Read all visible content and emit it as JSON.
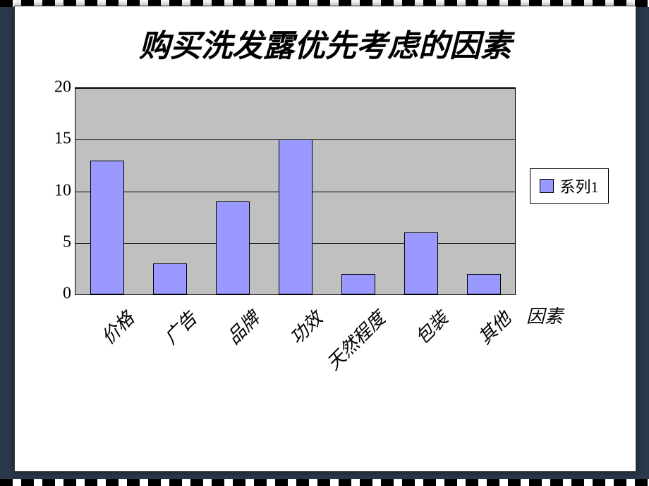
{
  "title": "购买洗发露优先考虑的因素",
  "chart": {
    "type": "bar",
    "categories": [
      "价格",
      "广告",
      "品牌",
      "功效",
      "天然程度",
      "包装",
      "其他"
    ],
    "values": [
      13,
      3,
      9,
      15,
      2,
      6,
      2
    ],
    "bar_color": "#9999ff",
    "bar_border": "#000000",
    "plot_bg": "#c0c0c0",
    "grid_color": "#000000",
    "ylim": [
      0,
      20
    ],
    "yticks": [
      0,
      5,
      10,
      15,
      20
    ],
    "xlabel": "因素",
    "bar_width_ratio": 0.55,
    "tick_fontsize": 24,
    "cat_fontsize": 26,
    "title_fontsize": 44,
    "cat_rotation_deg": -45
  },
  "legend": {
    "label": "系列1",
    "swatch_color": "#9999ff"
  }
}
